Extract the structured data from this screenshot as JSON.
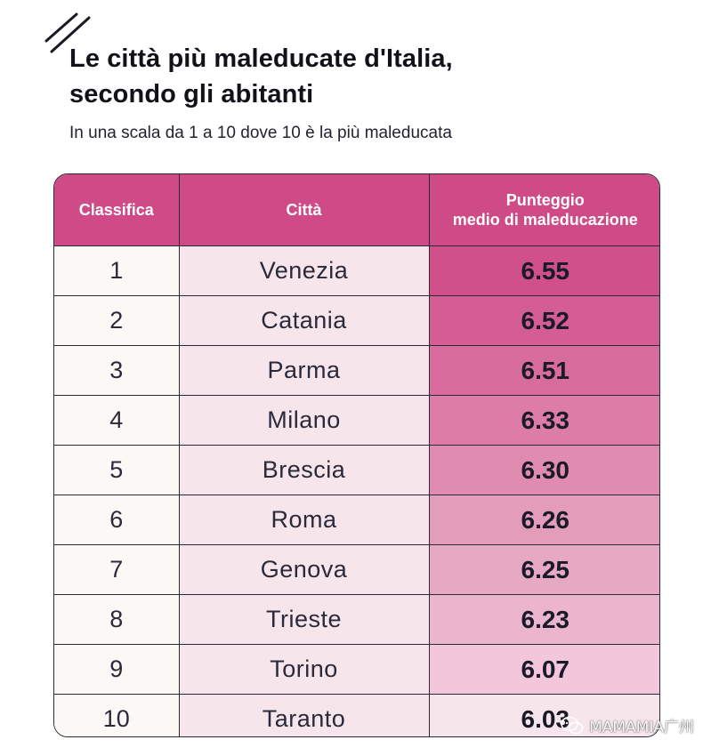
{
  "header": {
    "title_lines": [
      "Le città più maleducate d'Italia,",
      "secondo gli abitanti"
    ],
    "subtitle": "In una scala da 1 a 10 dove 10 è la più maleducata"
  },
  "chart_data": {
    "type": "table",
    "columns": [
      "Classifica",
      "Città",
      "Punteggio medio di maleducazione"
    ],
    "score_header_lines": [
      "Punteggio",
      "medio di maleducazione"
    ],
    "rows": [
      {
        "rank": "1",
        "city": "Venezia",
        "score": "6.55",
        "fill": "#d0508a"
      },
      {
        "rank": "2",
        "city": "Catania",
        "score": "6.52",
        "fill": "#d45d93"
      },
      {
        "rank": "3",
        "city": "Parma",
        "score": "6.51",
        "fill": "#d86c9d"
      },
      {
        "rank": "4",
        "city": "Milano",
        "score": "6.33",
        "fill": "#dc7ca7"
      },
      {
        "rank": "5",
        "city": "Brescia",
        "score": "6.30",
        "fill": "#e08cb1"
      },
      {
        "rank": "6",
        "city": "Roma",
        "score": "6.26",
        "fill": "#e49cbb"
      },
      {
        "rank": "7",
        "city": "Genova",
        "score": "6.25",
        "fill": "#e7a8c4"
      },
      {
        "rank": "8",
        "city": "Trieste",
        "score": "6.23",
        "fill": "#ebb5cd"
      },
      {
        "rank": "9",
        "city": "Torino",
        "score": "6.07",
        "fill": "#f3c6db"
      },
      {
        "rank": "10",
        "city": "Taranto",
        "score": "6.03",
        "fill": "#f6e6ec"
      }
    ]
  },
  "watermark": {
    "text": "MAMAMIA广州",
    "icon": "wechat-icon"
  },
  "colors": {
    "header_bg": "#cf4b87",
    "city_col_bg": "#f6e6ec",
    "rank_col_bg": "#fcf8f6"
  }
}
